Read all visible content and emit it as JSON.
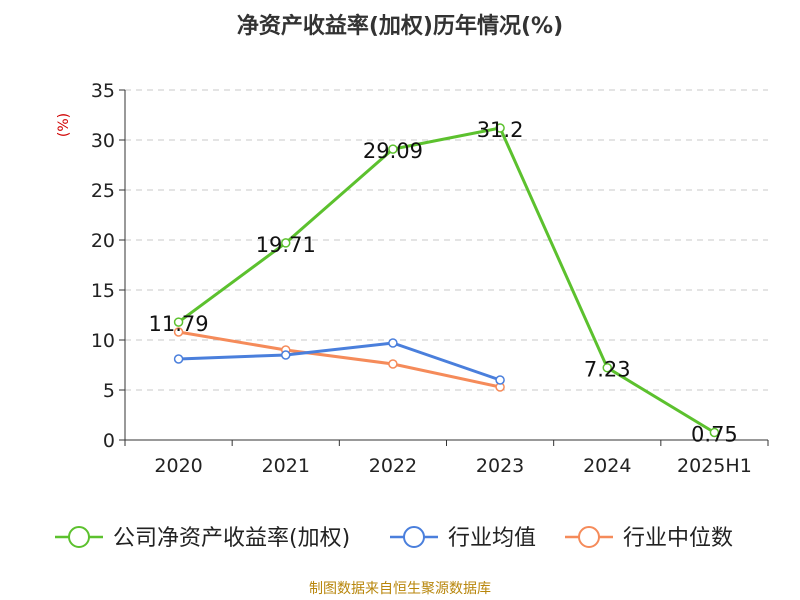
{
  "chart_data": {
    "type": "line",
    "title": "净资产收益率(加权)历年情况(%)",
    "ylabel": "(%)",
    "xlabel": "",
    "categories": [
      "2020",
      "2021",
      "2022",
      "2023",
      "2024",
      "2025H1"
    ],
    "ylim": [
      0,
      35
    ],
    "yticks": [
      0,
      5,
      10,
      15,
      20,
      25,
      30,
      35
    ],
    "grid": true,
    "legend_position": "bottom",
    "series": [
      {
        "name": "公司净资产收益率(加权)",
        "color": "#5cc12e",
        "values": [
          11.79,
          19.71,
          29.09,
          31.2,
          7.23,
          0.75
        ],
        "labels": [
          "11.79",
          "19.71",
          "29.09",
          "31.2",
          "7.23",
          "0.75"
        ]
      },
      {
        "name": "行业均值",
        "color": "#4a7fdc",
        "values": [
          8.1,
          8.5,
          9.7,
          6.0,
          null,
          null
        ]
      },
      {
        "name": "行业中位数",
        "color": "#f58b5a",
        "values": [
          10.8,
          9.0,
          7.6,
          5.3,
          null,
          null
        ]
      }
    ]
  },
  "footer": "制图数据来自恒生聚源数据库"
}
